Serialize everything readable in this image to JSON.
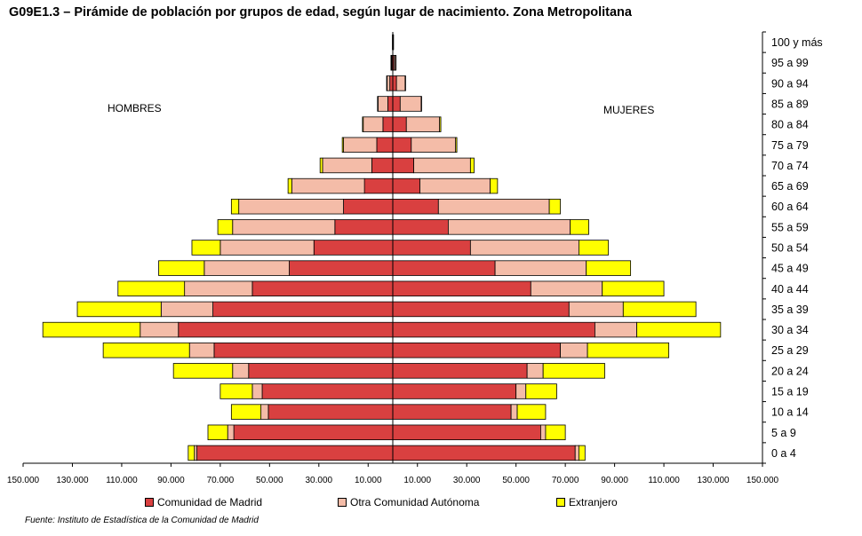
{
  "title": "G09E1.3 – Pirámide de población por grupos de edad, según lugar de nacimiento.  Zona Metropolitana",
  "labels": {
    "men": "HOMBRES",
    "women": "MUJERES"
  },
  "source": "Fuente: Instituto de Estadística de la Comunidad de Madrid",
  "colors": {
    "madrid": "#d94040",
    "otra": "#f4bca8",
    "extranjero": "#ffff00",
    "outline": "#000000"
  },
  "chart_data": {
    "type": "bar",
    "orientation": "horizontal",
    "stacked": true,
    "title": "G09E1.3 – Pirámide de población por grupos de edad, según lugar de nacimiento.  Zona Metropolitana",
    "categories": [
      "0 a 4",
      "5 a 9",
      "10 a 14",
      "15 a 19",
      "20 a 24",
      "25 a 29",
      "30 a 34",
      "35 a 39",
      "40 a 44",
      "45 a 49",
      "50 a 54",
      "55 a 59",
      "60 a 64",
      "65 a 69",
      "70 a 74",
      "75 a 79",
      "80 a 84",
      "85 a 89",
      "90 a 94",
      "95 a 99",
      "100 y más"
    ],
    "x_ticks": [
      "150.000",
      "130.000",
      "110.000",
      "90.000",
      "70.000",
      "50.000",
      "30.000",
      "10.000",
      "10.000",
      "30.000",
      "50.000",
      "70.000",
      "90.000",
      "110.000",
      "130.000",
      "150.000"
    ],
    "xlim": [
      -150000,
      150000
    ],
    "legend_position": "bottom",
    "series": [
      {
        "name": "Comunidad de Madrid",
        "men": [
          79500,
          64500,
          50500,
          53000,
          58500,
          72500,
          87000,
          73000,
          57000,
          42000,
          32000,
          23500,
          20000,
          11500,
          8500,
          6500,
          4000,
          2000,
          1200,
          400,
          100
        ],
        "women": [
          74000,
          60000,
          48000,
          50000,
          54500,
          68000,
          82000,
          71500,
          56000,
          41500,
          31500,
          22500,
          18500,
          11000,
          8500,
          7500,
          5500,
          3000,
          1500,
          500,
          100
        ]
      },
      {
        "name": "Otra Comunidad Autónoma",
        "men": [
          1000,
          2500,
          3000,
          4000,
          6500,
          10000,
          15500,
          21000,
          27500,
          34500,
          38000,
          41500,
          42500,
          29500,
          20000,
          13500,
          8000,
          4000,
          1200,
          300,
          50
        ],
        "women": [
          1500,
          2000,
          2500,
          4000,
          6500,
          11000,
          17000,
          22000,
          29000,
          37000,
          44000,
          49500,
          45000,
          28500,
          23000,
          18000,
          13500,
          8500,
          3500,
          600,
          100
        ]
      },
      {
        "name": "Extranjero",
        "men": [
          2500,
          8000,
          12000,
          13000,
          24000,
          35000,
          39500,
          34000,
          27000,
          18500,
          11500,
          6000,
          3000,
          1500,
          1000,
          500,
          300,
          200,
          100,
          50,
          0
        ],
        "women": [
          2500,
          8000,
          11500,
          12500,
          25000,
          33000,
          34000,
          29500,
          25000,
          18000,
          12000,
          7500,
          4500,
          3000,
          1500,
          500,
          500,
          200,
          100,
          50,
          0
        ]
      }
    ]
  }
}
